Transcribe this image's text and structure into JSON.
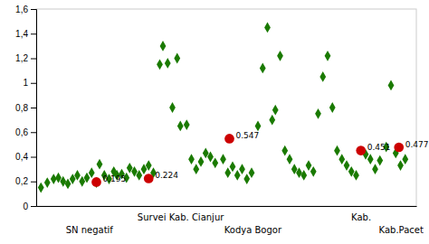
{
  "chart_data": {
    "type": "scatter",
    "xlim": [
      0,
      24
    ],
    "ylim": [
      0,
      1.6
    ],
    "yticks": [
      0,
      {
        "value": 0.2,
        "label": "0,2"
      },
      {
        "value": 0.4,
        "label": "0,4"
      },
      {
        "value": 0.6,
        "label": "0,6"
      },
      {
        "value": 0.8,
        "label": "0,8"
      },
      1,
      {
        "value": 1.2,
        "label": "1,2"
      },
      {
        "value": 1.4,
        "label": "1,4"
      },
      {
        "value": 1.6,
        "label": "1,6"
      }
    ],
    "tick_labels": "y",
    "series": [
      {
        "color": "#1a7a00",
        "marker": "diamond",
        "x": [
          0.3,
          0.7,
          1.1,
          1.4,
          1.7,
          2.0,
          2.3,
          2.6,
          2.9,
          3.2,
          3.5,
          3.8,
          4.0,
          4.3,
          4.6,
          4.9,
          5.1,
          5.4,
          5.7,
          5.9,
          6.2,
          6.5,
          6.8,
          7.1,
          7.4,
          7.8,
          8.0,
          8.3,
          8.6,
          8.9,
          9.1,
          9.5,
          9.8,
          10.1,
          10.4,
          10.7,
          11.0,
          11.3,
          11.8,
          12.1,
          12.4,
          12.7,
          13.0,
          13.3,
          13.6,
          14.0,
          14.3,
          14.6,
          14.9,
          15.1,
          15.4,
          15.7,
          16.0,
          16.3,
          16.6,
          16.9,
          17.2,
          17.5,
          17.8,
          18.1,
          18.4,
          18.7,
          19.0,
          19.3,
          19.6,
          19.9,
          20.2,
          20.8,
          21.1,
          21.4,
          21.7,
          22.1,
          22.4,
          22.7,
          23.0,
          23.3
        ],
        "values": [
          0.15,
          0.19,
          0.22,
          0.23,
          0.2,
          0.18,
          0.22,
          0.25,
          0.2,
          0.23,
          0.27,
          0.19,
          0.34,
          0.25,
          0.22,
          0.28,
          0.25,
          0.26,
          0.23,
          0.31,
          0.28,
          0.25,
          0.3,
          0.33,
          0.27,
          1.15,
          1.3,
          1.16,
          0.8,
          1.2,
          0.65,
          0.66,
          0.38,
          0.3,
          0.36,
          0.43,
          0.4,
          0.35,
          0.38,
          0.27,
          0.32,
          0.25,
          0.3,
          0.22,
          0.27,
          0.65,
          1.12,
          1.45,
          0.7,
          0.78,
          1.22,
          0.45,
          0.38,
          0.3,
          0.27,
          0.25,
          0.33,
          0.28,
          0.75,
          1.05,
          1.22,
          0.8,
          0.45,
          0.38,
          0.33,
          0.28,
          0.25,
          0.42,
          0.38,
          0.3,
          0.37,
          0.48,
          0.98,
          0.43,
          0.33,
          0.38
        ]
      },
      {
        "color": "#cc0000",
        "marker": "circle",
        "data_labels": true,
        "x": [
          3.8,
          7.1,
          12.2,
          20.5,
          22.9
        ],
        "values": [
          0.195,
          0.224,
          0.547,
          0.451,
          0.477
        ]
      }
    ],
    "annotations": [
      "SN negatif",
      "Survei Kab. Cianjur",
      "Kodya Bogor",
      "Kab.",
      "Kab.Pacet"
    ]
  }
}
